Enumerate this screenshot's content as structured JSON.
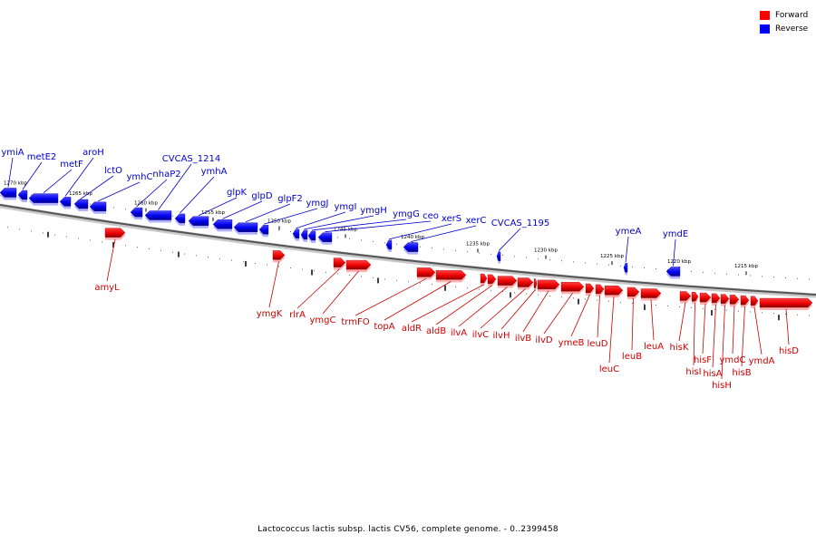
{
  "legend": {
    "forward_label": "Forward",
    "reverse_label": "Reverse",
    "forward_color": "#ff0000",
    "reverse_color": "#0000ff"
  },
  "caption": "Lactococcus lactis subsp. lactis CV56, complete genome. - 0..2399458",
  "scale_ticks": [
    "1270 kbp",
    "1265 kbp",
    "1260 kbp",
    "1255 kbp",
    "1250 kbp",
    "1245 kbp",
    "1240 kbp",
    "1235 kbp",
    "1230 kbp",
    "1225 kbp",
    "1220 kbp",
    "1215 kbp"
  ],
  "label_color_forward": "#cc0000",
  "label_color_reverse": "#0000cc",
  "reverse_genes": [
    "ymiA",
    "metE2",
    "metF",
    "aroH",
    "lctO",
    "ymhC",
    "nhaP2",
    "CVCAS_1214",
    "ymhA",
    "glpK",
    "glpD",
    "glpF2",
    "ymgJ",
    "ymgI",
    "ymgH",
    "ymgG",
    "ceo",
    "xerS",
    "xerC",
    "CVCAS_1195",
    "ymeA",
    "ymdE"
  ],
  "forward_genes": [
    "amyL",
    "ymgK",
    "rlrA",
    "ymgC",
    "trmFO",
    "topA",
    "aldR",
    "aldB",
    "ilvA",
    "ilvC",
    "ilvH",
    "ilvB",
    "ilvD",
    "ymeB",
    "leuD",
    "leuC",
    "leuB",
    "leuA",
    "hisK",
    "hisI",
    "hisF",
    "hisA",
    "hisH",
    "ymdC",
    "hisB",
    "ymdA",
    "hisD"
  ]
}
